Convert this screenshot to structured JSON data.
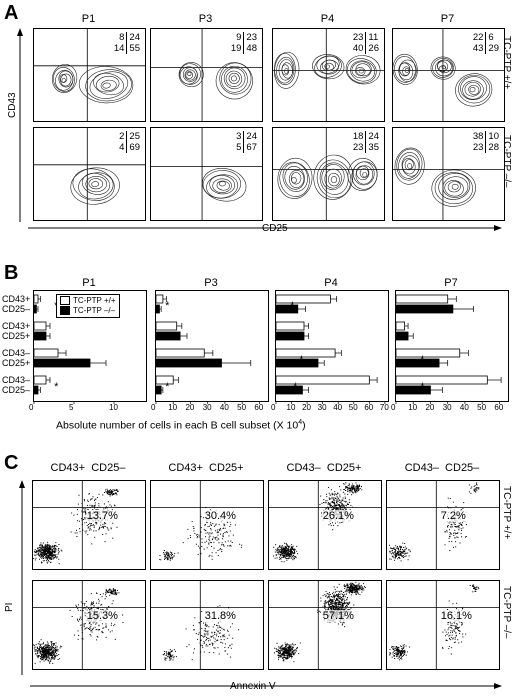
{
  "panel_a": {
    "letter": "A",
    "columns": [
      "P1",
      "P3",
      "P4",
      "P7"
    ],
    "rows": [
      "TC-PTP +/+",
      "TC-PTP –/–"
    ],
    "y_axis": "CD43",
    "x_axis": "CD25",
    "quadrants": [
      [
        [
          "8",
          "24",
          "14",
          "55"
        ],
        [
          "9",
          "23",
          "19",
          "48"
        ],
        [
          "23",
          "11",
          "40",
          "26"
        ],
        [
          "22",
          "6",
          "43",
          "29"
        ]
      ],
      [
        [
          "2",
          "25",
          "4",
          "69"
        ],
        [
          "3",
          "24",
          "5",
          "67"
        ],
        [
          "18",
          "24",
          "23",
          "35"
        ],
        [
          "38",
          "10",
          "23",
          "28"
        ]
      ]
    ]
  },
  "panel_b": {
    "letter": "B",
    "columns": [
      "P1",
      "P3",
      "P4",
      "P7"
    ],
    "legend": [
      "TC-PTP +/+",
      "TC-PTP –/–"
    ],
    "categories": [
      [
        "CD43+",
        "CD25–"
      ],
      [
        "CD43+",
        "CD25+"
      ],
      [
        "CD43–",
        "CD25+"
      ],
      [
        "CD43–",
        "CD25–"
      ]
    ],
    "x_title": "Absolute number of cells in each B cell subset (X 10",
    "x_title_sup": "4",
    "x_title_end": ")",
    "ticks": [
      [
        "0",
        "5",
        "10"
      ],
      [
        "0",
        "10",
        "20",
        "30",
        "40",
        "50",
        "60"
      ],
      [
        "0",
        "10",
        "20",
        "30",
        "40",
        "50",
        "60",
        "70"
      ],
      [
        "0",
        "10",
        "20",
        "30",
        "40",
        "50",
        "60"
      ]
    ],
    "star": "*"
  },
  "panel_c": {
    "letter": "C",
    "columns": [
      "CD43+  CD25–",
      "CD43+  CD25+",
      "CD43–  CD25+",
      "CD43–  CD25–"
    ],
    "rows": [
      "TC-PTP +/+",
      "TC-PTP –/–"
    ],
    "y_axis": "PI",
    "x_axis": "Annexin V",
    "percentages": [
      [
        "13.7%",
        "30.4%",
        "26.1%",
        "7.2%"
      ],
      [
        "15.3%",
        "31.8%",
        "57.1%",
        "16.1%"
      ]
    ]
  },
  "chart_data": {
    "type": "bar",
    "title": "",
    "xlabel": "Absolute number of cells in each B cell subset (X 10^4)",
    "categories": [
      "CD43+ CD25–",
      "CD43+ CD25+",
      "CD43– CD25+",
      "CD43– CD25–"
    ],
    "panels": [
      {
        "name": "P1",
        "xlim": [
          0,
          14
        ],
        "series": [
          {
            "name": "TC-PTP +/+",
            "values": [
              0.5,
              1.5,
              3,
              1.5
            ],
            "errors": [
              0.3,
              0.5,
              1,
              0.5
            ]
          },
          {
            "name": "TC-PTP –/–",
            "values": [
              0.3,
              1.5,
              7,
              0.5
            ],
            "errors": [
              0.2,
              0.5,
              2,
              0.3
            ]
          }
        ]
      },
      {
        "name": "P3",
        "xlim": [
          0,
          65
        ],
        "series": [
          {
            "name": "TC-PTP +/+",
            "values": [
              4,
              12,
              28,
              10
            ],
            "errors": [
              2,
              3,
              5,
              3
            ]
          },
          {
            "name": "TC-PTP –/–",
            "values": [
              2,
              14,
              38,
              3
            ],
            "errors": [
              1,
              4,
              17,
              1
            ]
          }
        ]
      },
      {
        "name": "P4",
        "xlim": [
          0,
          72
        ],
        "series": [
          {
            "name": "TC-PTP +/+",
            "values": [
              35,
              18,
              38,
              60
            ],
            "errors": [
              4,
              3,
              4,
              5
            ]
          },
          {
            "name": "TC-PTP –/–",
            "values": [
              14,
              18,
              27,
              17
            ],
            "errors": [
              5,
              3,
              4,
              4
            ]
          }
        ]
      },
      {
        "name": "P7",
        "xlim": [
          0,
          65
        ],
        "series": [
          {
            "name": "TC-PTP +/+",
            "values": [
              30,
              5,
              37,
              53
            ],
            "errors": [
              5,
              2,
              5,
              8
            ]
          },
          {
            "name": "TC-PTP –/–",
            "values": [
              33,
              7,
              25,
              20
            ],
            "errors": [
              12,
              3,
              5,
              7
            ]
          }
        ]
      }
    ]
  }
}
